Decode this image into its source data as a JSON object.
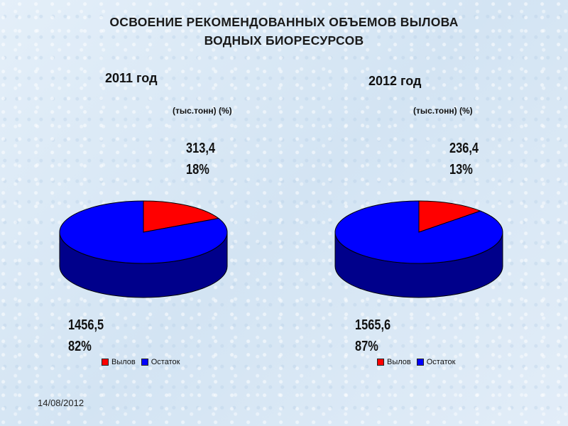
{
  "title_line1": "ОСВОЕНИЕ РЕКОМЕНДОВАННЫХ ОБЪЕМОВ ВЫЛОВА",
  "title_line2": "ВОДНЫХ БИОРЕСУРСОВ",
  "date": "14/08/2012",
  "colors": {
    "catch": "#ff0000",
    "remainder": "#0000ff",
    "remainder_side": "#00008b",
    "catch_side": "#8b0000"
  },
  "chart_data": [
    {
      "type": "pie",
      "year_label": "2011 год",
      "unit_label": "(тыс.тонн) (%)",
      "categories": [
        "Вылов",
        "Остаток"
      ],
      "values": [
        313.4,
        1456.5
      ],
      "value_labels": [
        "313,4",
        "1456,5"
      ],
      "percent_labels": [
        "18%",
        "82%"
      ],
      "legend": [
        "Вылов",
        "Остаток"
      ]
    },
    {
      "type": "pie",
      "year_label": "2012 год",
      "unit_label": "(тыс.тонн) (%)",
      "categories": [
        "Вылов",
        "Остаток"
      ],
      "values": [
        236.4,
        1565.6
      ],
      "value_labels": [
        "236,4",
        "1565,6"
      ],
      "percent_labels": [
        "13%",
        "87%"
      ],
      "legend": [
        "Вылов",
        "Остаток"
      ]
    }
  ]
}
